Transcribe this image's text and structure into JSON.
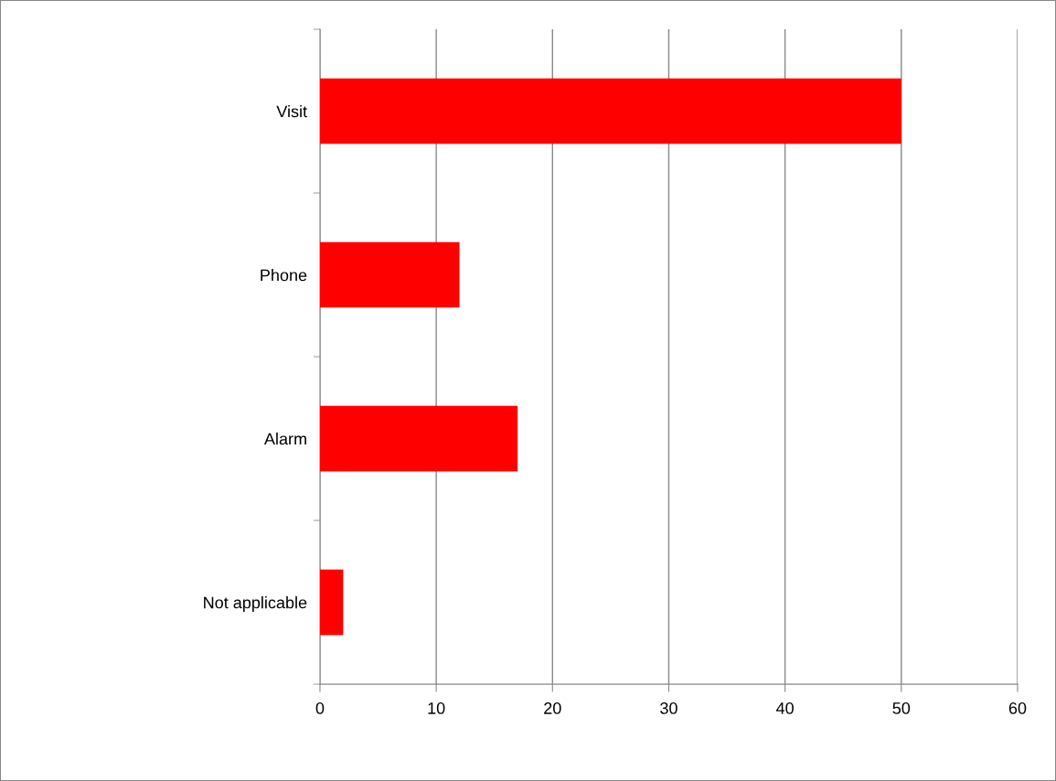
{
  "chart_data": {
    "type": "bar",
    "orientation": "horizontal",
    "categories": [
      "Visit",
      "Phone",
      "Alarm",
      "Not applicable"
    ],
    "values": [
      50,
      12,
      17,
      2
    ],
    "color": "#ff0000",
    "xlim": [
      0,
      60
    ],
    "xticks": [
      0,
      10,
      20,
      30,
      40,
      50,
      60
    ],
    "grid": "x",
    "legend": false
  }
}
